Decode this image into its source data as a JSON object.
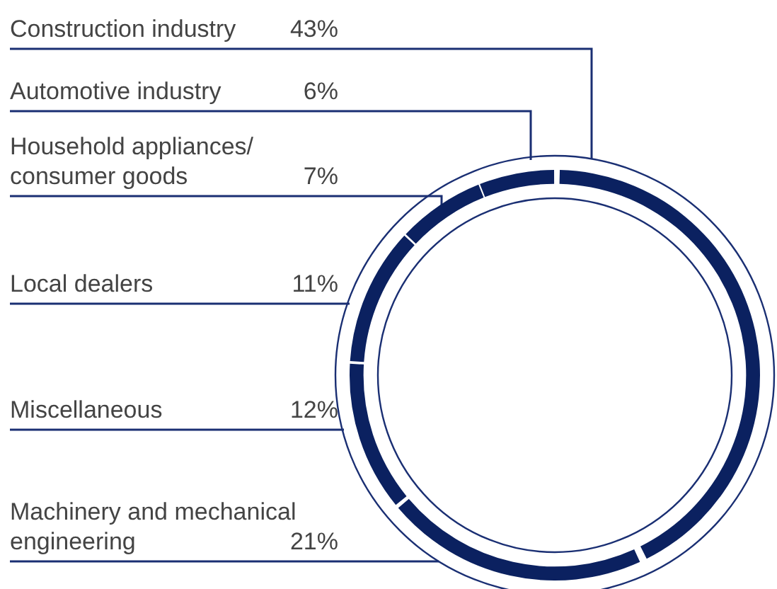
{
  "chart_data": {
    "type": "donut",
    "categories": [
      "Construction industry",
      "Machinery and mechanical engineering",
      "Miscellaneous",
      "Local dealers",
      "Household appliances/ consumer goods",
      "Automotive industry"
    ],
    "values": [
      43,
      21,
      12,
      11,
      7,
      6
    ],
    "value_labels": [
      "43%",
      "21%",
      "12%",
      "11%",
      "7%",
      "6%"
    ],
    "colors": [
      "#0b2160",
      "#0b2160",
      "#0b2160",
      "#0b2160",
      "#0b2160",
      "#0b2160"
    ]
  }
}
